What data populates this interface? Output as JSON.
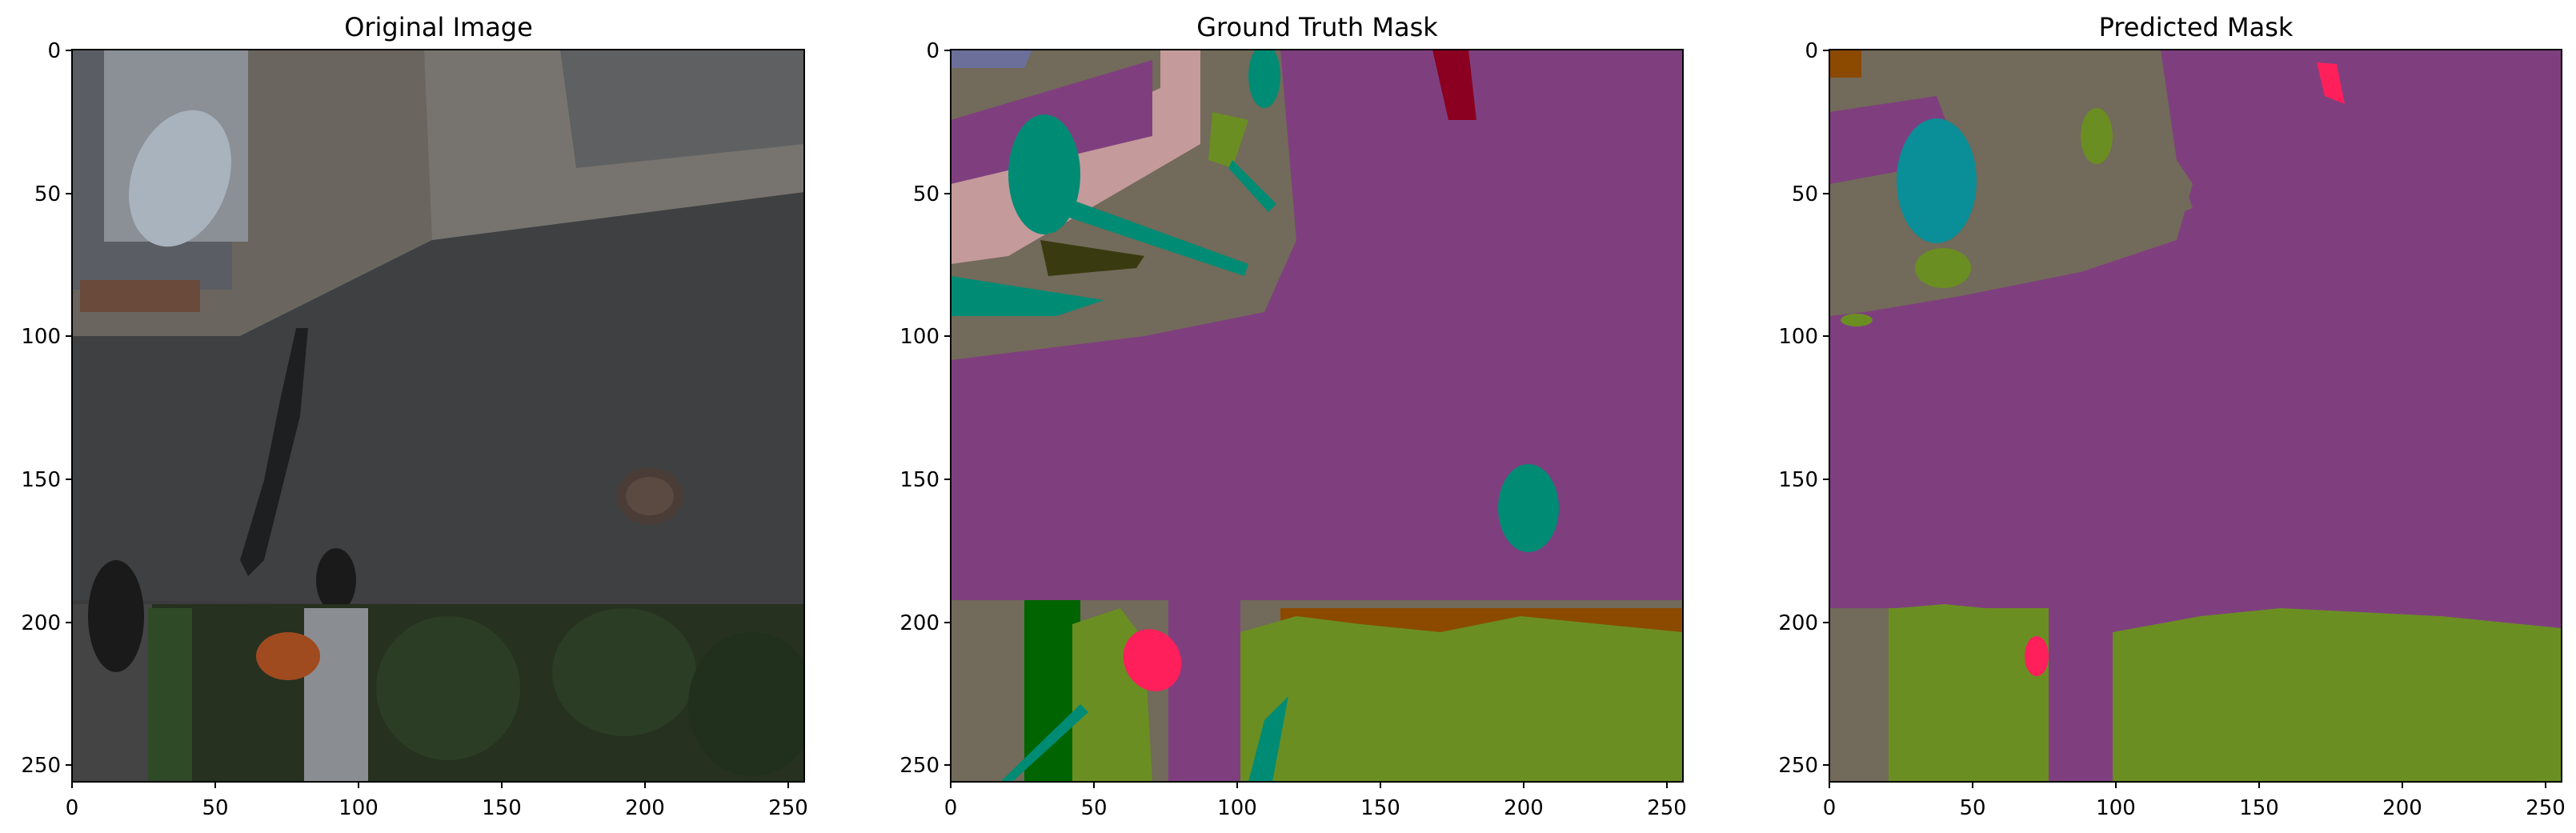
{
  "panels": [
    {
      "id": "original",
      "title": "Original Image",
      "xticks": [
        0,
        50,
        100,
        150,
        200,
        250
      ],
      "yticks": [
        0,
        50,
        100,
        150,
        200,
        250
      ],
      "xlim": [
        0,
        256
      ],
      "ylim": [
        256,
        0
      ]
    },
    {
      "id": "ground-truth",
      "title": "Ground Truth Mask",
      "xticks": [
        0,
        50,
        100,
        150,
        200,
        250
      ],
      "yticks": [
        0,
        50,
        100,
        150,
        200,
        250
      ],
      "xlim": [
        0,
        256
      ],
      "ylim": [
        256,
        0
      ]
    },
    {
      "id": "predicted",
      "title": "Predicted Mask",
      "xticks": [
        0,
        50,
        100,
        150,
        200,
        250
      ],
      "yticks": [
        0,
        50,
        100,
        150,
        200,
        250
      ],
      "xlim": [
        0,
        256
      ],
      "ylim": [
        256,
        0
      ]
    }
  ],
  "colors": {
    "road": "#7f3f7f",
    "vegetation": "#6b8e23",
    "ground": "#726a5a",
    "object-teal": "#008b74",
    "person": "#ff1f5a",
    "tree-dark": "#006400",
    "soil": "#8b4a00",
    "paving": "#c49a9a",
    "roof": "#6b6f9a",
    "car": "#8b0020"
  }
}
